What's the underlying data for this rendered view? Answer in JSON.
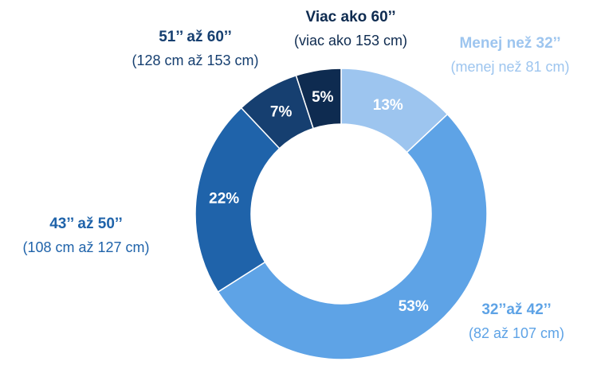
{
  "chart_data": {
    "type": "donut",
    "categories": [
      "Menej než 32’’",
      "32’’až 42’’",
      "43’’ až 50’’",
      "51’’ až 60’’",
      "Viac ako 60’’"
    ],
    "category_details": [
      "(menej než 81 cm)",
      "(82 až 107 cm)",
      "(108 cm až 127 cm)",
      "(128 cm až 153 cm)",
      "(viac ako 153 cm)"
    ],
    "values": [
      13,
      53,
      22,
      7,
      5
    ],
    "value_labels": [
      "13%",
      "53%",
      "22%",
      "7%",
      "5%"
    ],
    "colors": [
      "#9dc5ef",
      "#5ea3e6",
      "#1f63aa",
      "#163f70",
      "#0e2b50"
    ]
  }
}
